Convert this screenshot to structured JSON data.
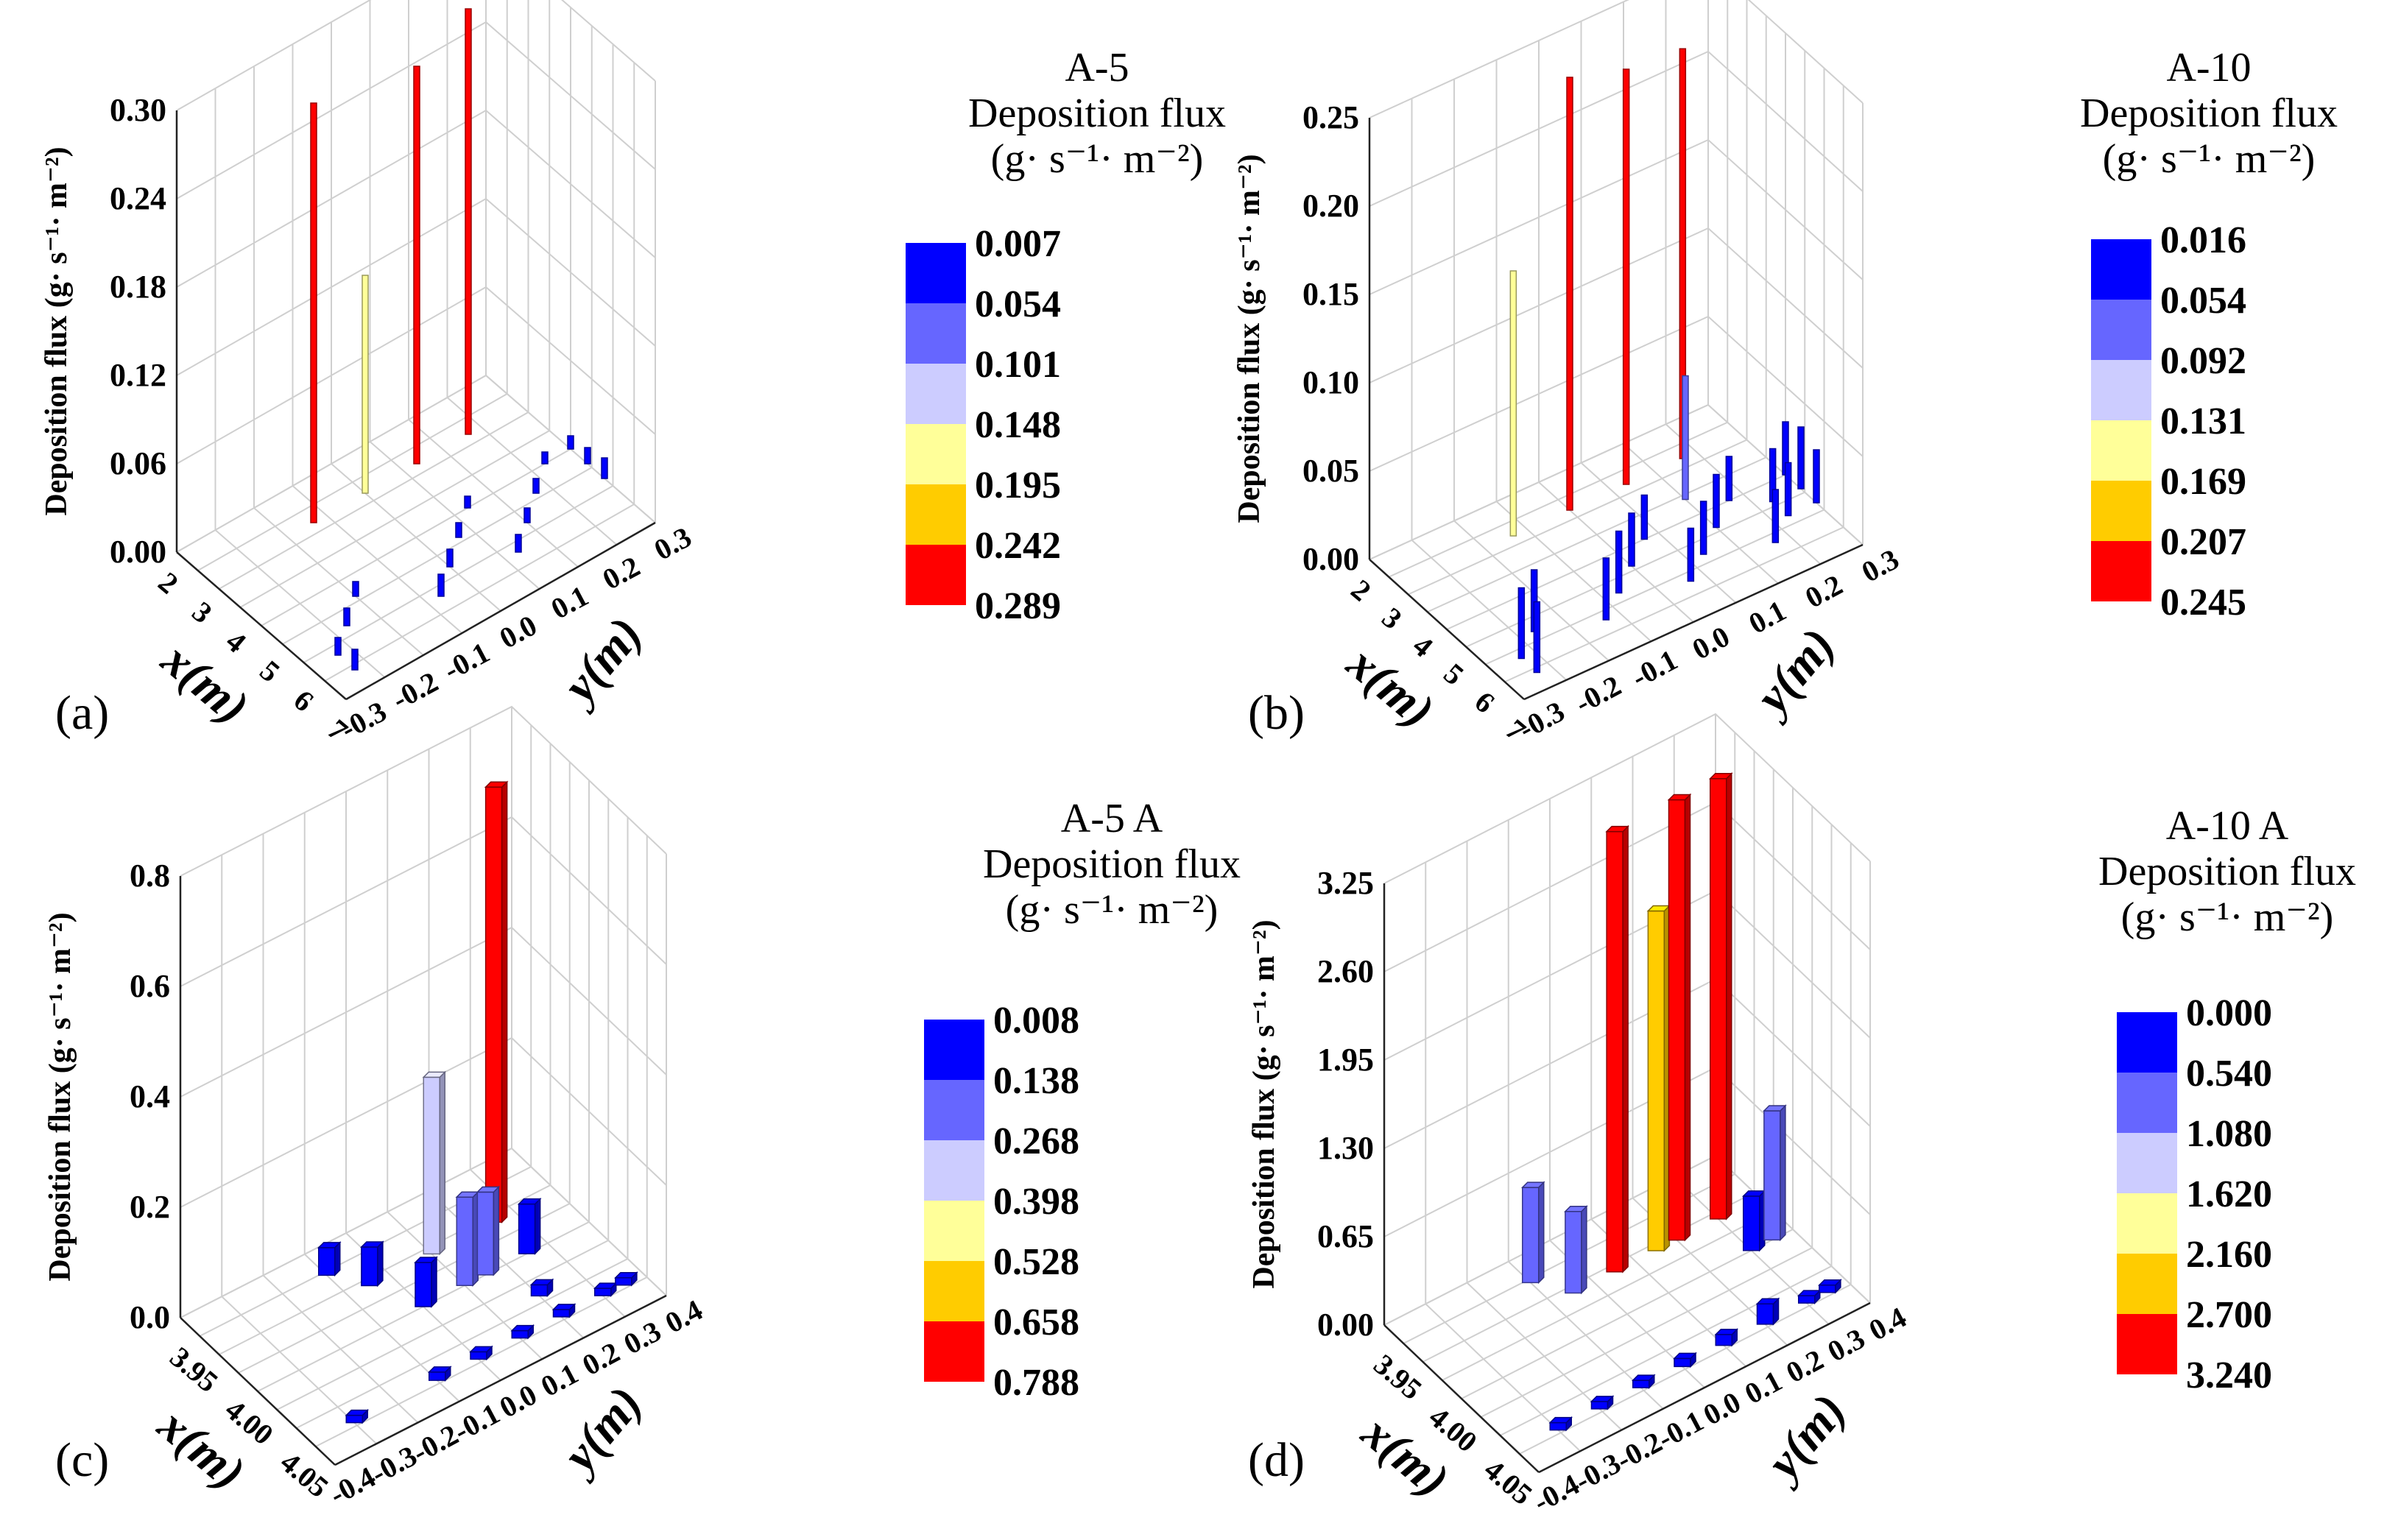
{
  "colors": {
    "scale": [
      "#0000ff",
      "#6666ff",
      "#ccccff",
      "#ffff99",
      "#ffcc00",
      "#ff0000"
    ]
  },
  "chart_data": [
    {
      "type": "bar3d",
      "panel_label": "(a)",
      "title": "A-5",
      "legend_title": "Deposition flux",
      "legend_unit": "(g· s⁻¹· m⁻²)",
      "legend_values": [
        "0.007",
        "0.054",
        "0.101",
        "0.148",
        "0.195",
        "0.242",
        "0.289"
      ],
      "zlabel": "Deposition flux (g· s⁻¹· m⁻²)",
      "xlabel": "x(m)",
      "ylabel": "y(m)",
      "zlim": [
        0,
        0.3
      ],
      "zticks": [
        "0.00",
        "0.06",
        "0.12",
        "0.18",
        "0.24",
        "0.30"
      ],
      "xlim": [
        2,
        7
      ],
      "xticks": [
        "2",
        "3",
        "4",
        "5",
        "6",
        "7"
      ],
      "ylim": [
        -0.3,
        0.3
      ],
      "yticks": [
        "-0.3",
        "-0.2",
        "-0.1",
        "0.0",
        "0.1",
        "0.2",
        "0.3"
      ],
      "bar_style": "thin",
      "bars": [
        {
          "x": 3.0,
          "y": 0.0,
          "z": 0.148
        },
        {
          "x": 3.0,
          "y": 0.2,
          "z": 0.289
        },
        {
          "x": 3.0,
          "y": 0.1,
          "z": 0.27
        },
        {
          "x": 3.0,
          "y": -0.1,
          "z": 0.285
        },
        {
          "x": 6.0,
          "y": -0.25,
          "z": 0.012
        },
        {
          "x": 6.5,
          "y": -0.25,
          "z": 0.014
        },
        {
          "x": 5.5,
          "y": -0.2,
          "z": 0.012
        },
        {
          "x": 5.0,
          "y": -0.15,
          "z": 0.01
        },
        {
          "x": 6.0,
          "y": -0.05,
          "z": 0.015
        },
        {
          "x": 5.5,
          "y": 0.0,
          "z": 0.012
        },
        {
          "x": 5.0,
          "y": 0.05,
          "z": 0.01
        },
        {
          "x": 4.5,
          "y": 0.1,
          "z": 0.008
        },
        {
          "x": 6.0,
          "y": 0.1,
          "z": 0.012
        },
        {
          "x": 5.5,
          "y": 0.15,
          "z": 0.01
        },
        {
          "x": 5.0,
          "y": 0.2,
          "z": 0.01
        },
        {
          "x": 4.5,
          "y": 0.25,
          "z": 0.008
        },
        {
          "x": 5.5,
          "y": 0.3,
          "z": 0.014
        },
        {
          "x": 5.0,
          "y": 0.3,
          "z": 0.011
        },
        {
          "x": 4.5,
          "y": 0.3,
          "z": 0.009
        }
      ]
    },
    {
      "type": "bar3d",
      "panel_label": "(b)",
      "title": "A-10",
      "legend_title": "Deposition flux",
      "legend_unit": "(g· s⁻¹· m⁻²)",
      "legend_values": [
        "0.016",
        "0.054",
        "0.092",
        "0.131",
        "0.169",
        "0.207",
        "0.245"
      ],
      "zlabel": "Deposition flux (g· s⁻¹· m⁻²)",
      "xlabel": "x(m)",
      "ylabel": "y(m)",
      "zlim": [
        0,
        0.25
      ],
      "zticks": [
        "0.00",
        "0.05",
        "0.10",
        "0.15",
        "0.20",
        "0.25"
      ],
      "xlim": [
        2,
        7
      ],
      "xticks": [
        "2",
        "3",
        "4",
        "5",
        "6",
        "7"
      ],
      "ylim": [
        -0.3,
        0.3
      ],
      "yticks": [
        "-0.3",
        "-0.2",
        "-0.1",
        "0.0",
        "0.1",
        "0.2",
        "0.3"
      ],
      "bar_style": "thin",
      "bars": [
        {
          "x": 3.0,
          "y": -0.1,
          "z": 0.15
        },
        {
          "x": 3.0,
          "y": 0.0,
          "z": 0.245
        },
        {
          "x": 3.0,
          "y": 0.1,
          "z": 0.235
        },
        {
          "x": 3.0,
          "y": 0.2,
          "z": 0.232
        },
        {
          "x": 4.0,
          "y": 0.15,
          "z": 0.07
        },
        {
          "x": 6.0,
          "y": -0.25,
          "z": 0.04
        },
        {
          "x": 6.5,
          "y": -0.25,
          "z": 0.04
        },
        {
          "x": 5.5,
          "y": -0.2,
          "z": 0.035
        },
        {
          "x": 6.0,
          "y": -0.1,
          "z": 0.035
        },
        {
          "x": 5.5,
          "y": -0.05,
          "z": 0.035
        },
        {
          "x": 5.0,
          "y": 0.0,
          "z": 0.03
        },
        {
          "x": 4.5,
          "y": 0.05,
          "z": 0.025
        },
        {
          "x": 6.0,
          "y": 0.05,
          "z": 0.03
        },
        {
          "x": 5.5,
          "y": 0.1,
          "z": 0.03
        },
        {
          "x": 5.0,
          "y": 0.15,
          "z": 0.03
        },
        {
          "x": 4.5,
          "y": 0.2,
          "z": 0.025
        },
        {
          "x": 6.0,
          "y": 0.2,
          "z": 0.03
        },
        {
          "x": 5.5,
          "y": 0.25,
          "z": 0.03
        },
        {
          "x": 5.0,
          "y": 0.25,
          "z": 0.03
        },
        {
          "x": 4.5,
          "y": 0.3,
          "z": 0.03
        },
        {
          "x": 5.5,
          "y": 0.3,
          "z": 0.03
        },
        {
          "x": 5.0,
          "y": 0.3,
          "z": 0.035
        }
      ]
    },
    {
      "type": "bar3d",
      "panel_label": "(c)",
      "title": "A-5   A",
      "legend_title": "Deposition flux",
      "legend_unit": "(g· s⁻¹· m⁻²)",
      "legend_values": [
        "0.008",
        "0.138",
        "0.268",
        "0.398",
        "0.528",
        "0.658",
        "0.788"
      ],
      "zlabel": "Deposition flux (g· s⁻¹· m⁻²)",
      "xlabel": "x(m)",
      "ylabel": "y(m)",
      "zlim": [
        0,
        0.8
      ],
      "zticks": [
        "0.0",
        "0.2",
        "0.4",
        "0.6",
        "0.8"
      ],
      "xlim": [
        3.93,
        4.07
      ],
      "xticks": [
        "3.95",
        "4.00",
        "4.05"
      ],
      "ylim": [
        -0.4,
        0.4
      ],
      "yticks": [
        "-0.4",
        "-0.3",
        "-0.2",
        "-0.1",
        "0.0",
        "0.1",
        "0.2",
        "0.3",
        "0.4"
      ],
      "bar_style": "box",
      "bars": [
        {
          "x": 3.95,
          "y": -0.1,
          "z": 0.05
        },
        {
          "x": 3.97,
          "y": -0.05,
          "z": 0.07
        },
        {
          "x": 3.97,
          "y": 0.1,
          "z": 0.32
        },
        {
          "x": 3.97,
          "y": 0.25,
          "z": 0.788
        },
        {
          "x": 4.0,
          "y": 0.0,
          "z": 0.08
        },
        {
          "x": 4.0,
          "y": 0.1,
          "z": 0.16
        },
        {
          "x": 4.0,
          "y": 0.15,
          "z": 0.15
        },
        {
          "x": 4.0,
          "y": 0.25,
          "z": 0.09
        },
        {
          "x": 4.05,
          "y": -0.3,
          "z": 0.01
        },
        {
          "x": 4.05,
          "y": -0.1,
          "z": 0.015
        },
        {
          "x": 4.05,
          "y": 0.0,
          "z": 0.01
        },
        {
          "x": 4.05,
          "y": 0.1,
          "z": 0.01
        },
        {
          "x": 4.05,
          "y": 0.2,
          "z": 0.01
        },
        {
          "x": 4.05,
          "y": 0.3,
          "z": 0.01
        },
        {
          "x": 4.05,
          "y": 0.35,
          "z": 0.01
        },
        {
          "x": 4.03,
          "y": 0.2,
          "z": 0.02
        }
      ]
    },
    {
      "type": "bar3d",
      "panel_label": "(d)",
      "title": "A-10   A",
      "legend_title": "Deposition flux",
      "legend_unit": "(g· s⁻¹· m⁻²)",
      "legend_values": [
        "0.000",
        "0.540",
        "1.080",
        "1.620",
        "2.160",
        "2.700",
        "3.240"
      ],
      "zlabel": "Deposition flux (g· s⁻¹· m⁻²)",
      "xlabel": "x(m)",
      "ylabel": "y(m)",
      "zlim": [
        0,
        3.25
      ],
      "zticks": [
        "0.00",
        "0.65",
        "1.30",
        "1.95",
        "2.60",
        "3.25"
      ],
      "xlim": [
        3.93,
        4.07
      ],
      "xticks": [
        "3.95",
        "4.00",
        "4.05"
      ],
      "ylim": [
        -0.4,
        0.4
      ],
      "yticks": [
        "-0.4",
        "-0.3",
        "-0.2",
        "-0.1",
        "0.0",
        "0.1",
        "0.2",
        "0.3",
        "0.4"
      ],
      "bar_style": "box",
      "bars": [
        {
          "x": 3.95,
          "y": -0.1,
          "z": 0.7
        },
        {
          "x": 3.97,
          "y": -0.05,
          "z": 0.6
        },
        {
          "x": 3.97,
          "y": 0.05,
          "z": 3.24
        },
        {
          "x": 3.97,
          "y": 0.15,
          "z": 2.5
        },
        {
          "x": 3.97,
          "y": 0.2,
          "z": 3.24
        },
        {
          "x": 3.97,
          "y": 0.3,
          "z": 3.24
        },
        {
          "x": 4.0,
          "y": 0.3,
          "z": 0.4
        },
        {
          "x": 4.0,
          "y": 0.35,
          "z": 0.95
        },
        {
          "x": 4.05,
          "y": -0.3,
          "z": 0.03
        },
        {
          "x": 4.05,
          "y": -0.2,
          "z": 0.03
        },
        {
          "x": 4.05,
          "y": -0.1,
          "z": 0.04
        },
        {
          "x": 4.05,
          "y": 0.0,
          "z": 0.06
        },
        {
          "x": 4.05,
          "y": 0.1,
          "z": 0.08
        },
        {
          "x": 4.05,
          "y": 0.2,
          "z": 0.15
        },
        {
          "x": 4.05,
          "y": 0.3,
          "z": 0.05
        },
        {
          "x": 4.05,
          "y": 0.35,
          "z": 0.05
        }
      ]
    }
  ]
}
